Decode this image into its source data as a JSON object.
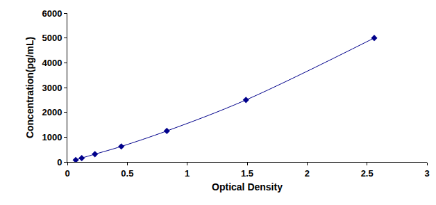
{
  "chart_data": {
    "type": "line",
    "x_label": "Optical Density",
    "y_label": "Concentration(pg/mL)",
    "x": [
      0.07,
      0.12,
      0.23,
      0.45,
      0.83,
      1.49,
      2.56
    ],
    "values": [
      78,
      156,
      312,
      625,
      1250,
      2500,
      5000
    ],
    "color": "#00008b",
    "marker": "diamond",
    "line_style": "solid",
    "xlim": [
      0,
      3
    ],
    "xticks": [
      0,
      0.5,
      1,
      1.5,
      2,
      2.5,
      3
    ],
    "ylim": [
      0,
      6000
    ],
    "yticks": [
      0,
      1000,
      2000,
      3000,
      4000,
      5000,
      6000
    ],
    "grid": false
  }
}
